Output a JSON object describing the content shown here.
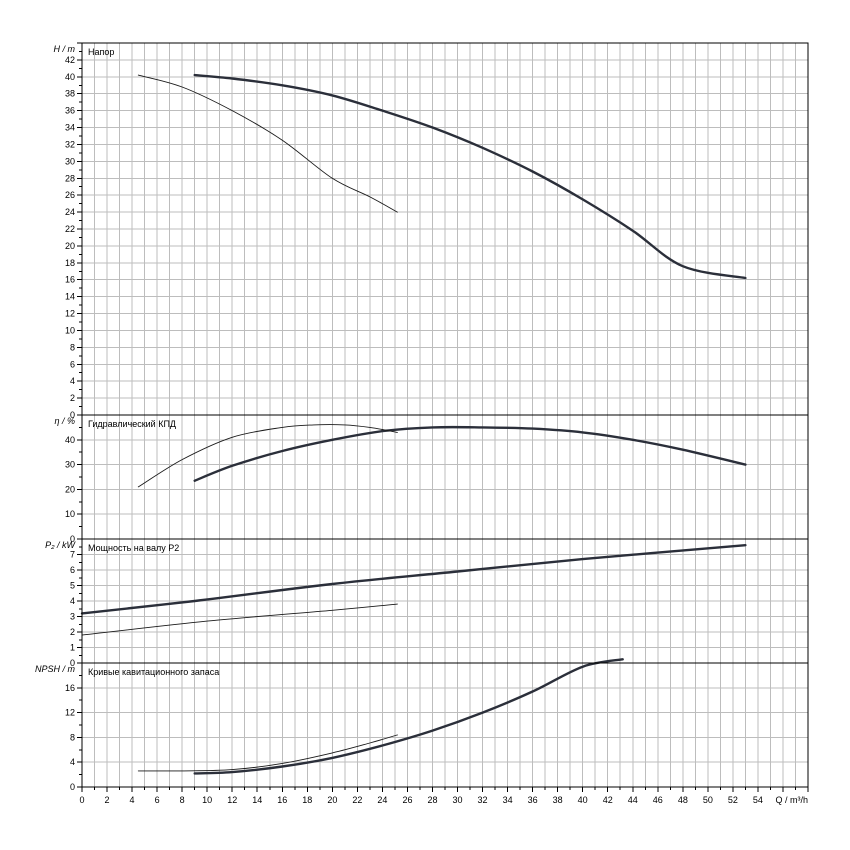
{
  "x_axis": {
    "min": 0,
    "max": 58,
    "label_ticks": [
      0,
      2,
      4,
      6,
      8,
      10,
      12,
      14,
      16,
      18,
      20,
      22,
      24,
      26,
      28,
      30,
      32,
      34,
      36,
      38,
      40,
      42,
      44,
      46,
      48,
      50,
      52,
      54
    ],
    "label": "Q / m³/h"
  },
  "chart_data": [
    {
      "type": "line",
      "title": "Напор",
      "ylabel": "H / m",
      "ylim": [
        0,
        44
      ],
      "y_ticks": [
        0,
        2,
        4,
        6,
        8,
        10,
        12,
        14,
        16,
        18,
        20,
        22,
        24,
        26,
        28,
        30,
        32,
        34,
        36,
        38,
        40,
        42
      ],
      "grid": true,
      "series": [
        {
          "style": "thick",
          "x": [
            9,
            12,
            16,
            20,
            24,
            28,
            32,
            36,
            40,
            44,
            48,
            53
          ],
          "y": [
            40.2,
            39.8,
            39,
            37.8,
            36,
            34,
            31.6,
            28.8,
            25.5,
            21.8,
            17.6,
            16.2
          ]
        },
        {
          "style": "thin",
          "x": [
            4.5,
            8,
            12,
            16,
            20,
            23,
            25.2
          ],
          "y": [
            40.2,
            38.8,
            36,
            32.5,
            28,
            25.8,
            24
          ]
        }
      ]
    },
    {
      "type": "line",
      "title": "Гидравлический КПД",
      "ylabel": "η / %",
      "ylim": [
        0,
        50
      ],
      "y_ticks": [
        0,
        10,
        20,
        30,
        40
      ],
      "grid": true,
      "series": [
        {
          "style": "thick",
          "x": [
            9,
            12,
            16,
            20,
            24,
            28,
            32,
            36,
            40,
            44,
            48,
            53
          ],
          "y": [
            23.5,
            29.5,
            35.5,
            40,
            43.5,
            45,
            45,
            44.5,
            43,
            40,
            36,
            30
          ]
        },
        {
          "style": "thin",
          "x": [
            4.5,
            8,
            12,
            16,
            18.5,
            21,
            23,
            25.2
          ],
          "y": [
            21,
            32,
            41,
            45,
            46,
            46,
            45,
            43
          ]
        }
      ]
    },
    {
      "type": "line",
      "title": "Мощность на валу P2",
      "ylabel": "P₂ / kW",
      "ylim": [
        0,
        8
      ],
      "y_ticks": [
        0,
        1,
        2,
        3,
        4,
        5,
        6,
        7
      ],
      "grid": true,
      "series": [
        {
          "style": "thick",
          "x": [
            0,
            9,
            20,
            30,
            40,
            53
          ],
          "y": [
            3.2,
            4.0,
            5.1,
            5.9,
            6.7,
            7.6
          ]
        },
        {
          "style": "thin",
          "x": [
            0,
            10,
            20,
            25.2
          ],
          "y": [
            1.8,
            2.7,
            3.4,
            3.8
          ]
        }
      ]
    },
    {
      "type": "line",
      "title": "Кривые кавитационного запаса",
      "ylabel": "NPSH / m",
      "ylim": [
        0,
        20
      ],
      "y_ticks": [
        0,
        4,
        8,
        12,
        16
      ],
      "grid": true,
      "series": [
        {
          "style": "thick",
          "x": [
            9,
            12,
            16,
            20,
            24,
            28,
            32,
            36,
            40,
            43.2
          ],
          "y": [
            2.2,
            2.4,
            3.3,
            4.7,
            6.7,
            9.1,
            12,
            15.4,
            19.4,
            20.6
          ]
        },
        {
          "style": "thin",
          "x": [
            4.5,
            8,
            12,
            16,
            20,
            23,
            25.2
          ],
          "y": [
            2.6,
            2.6,
            2.8,
            3.8,
            5.5,
            7.1,
            8.4
          ]
        }
      ]
    }
  ]
}
